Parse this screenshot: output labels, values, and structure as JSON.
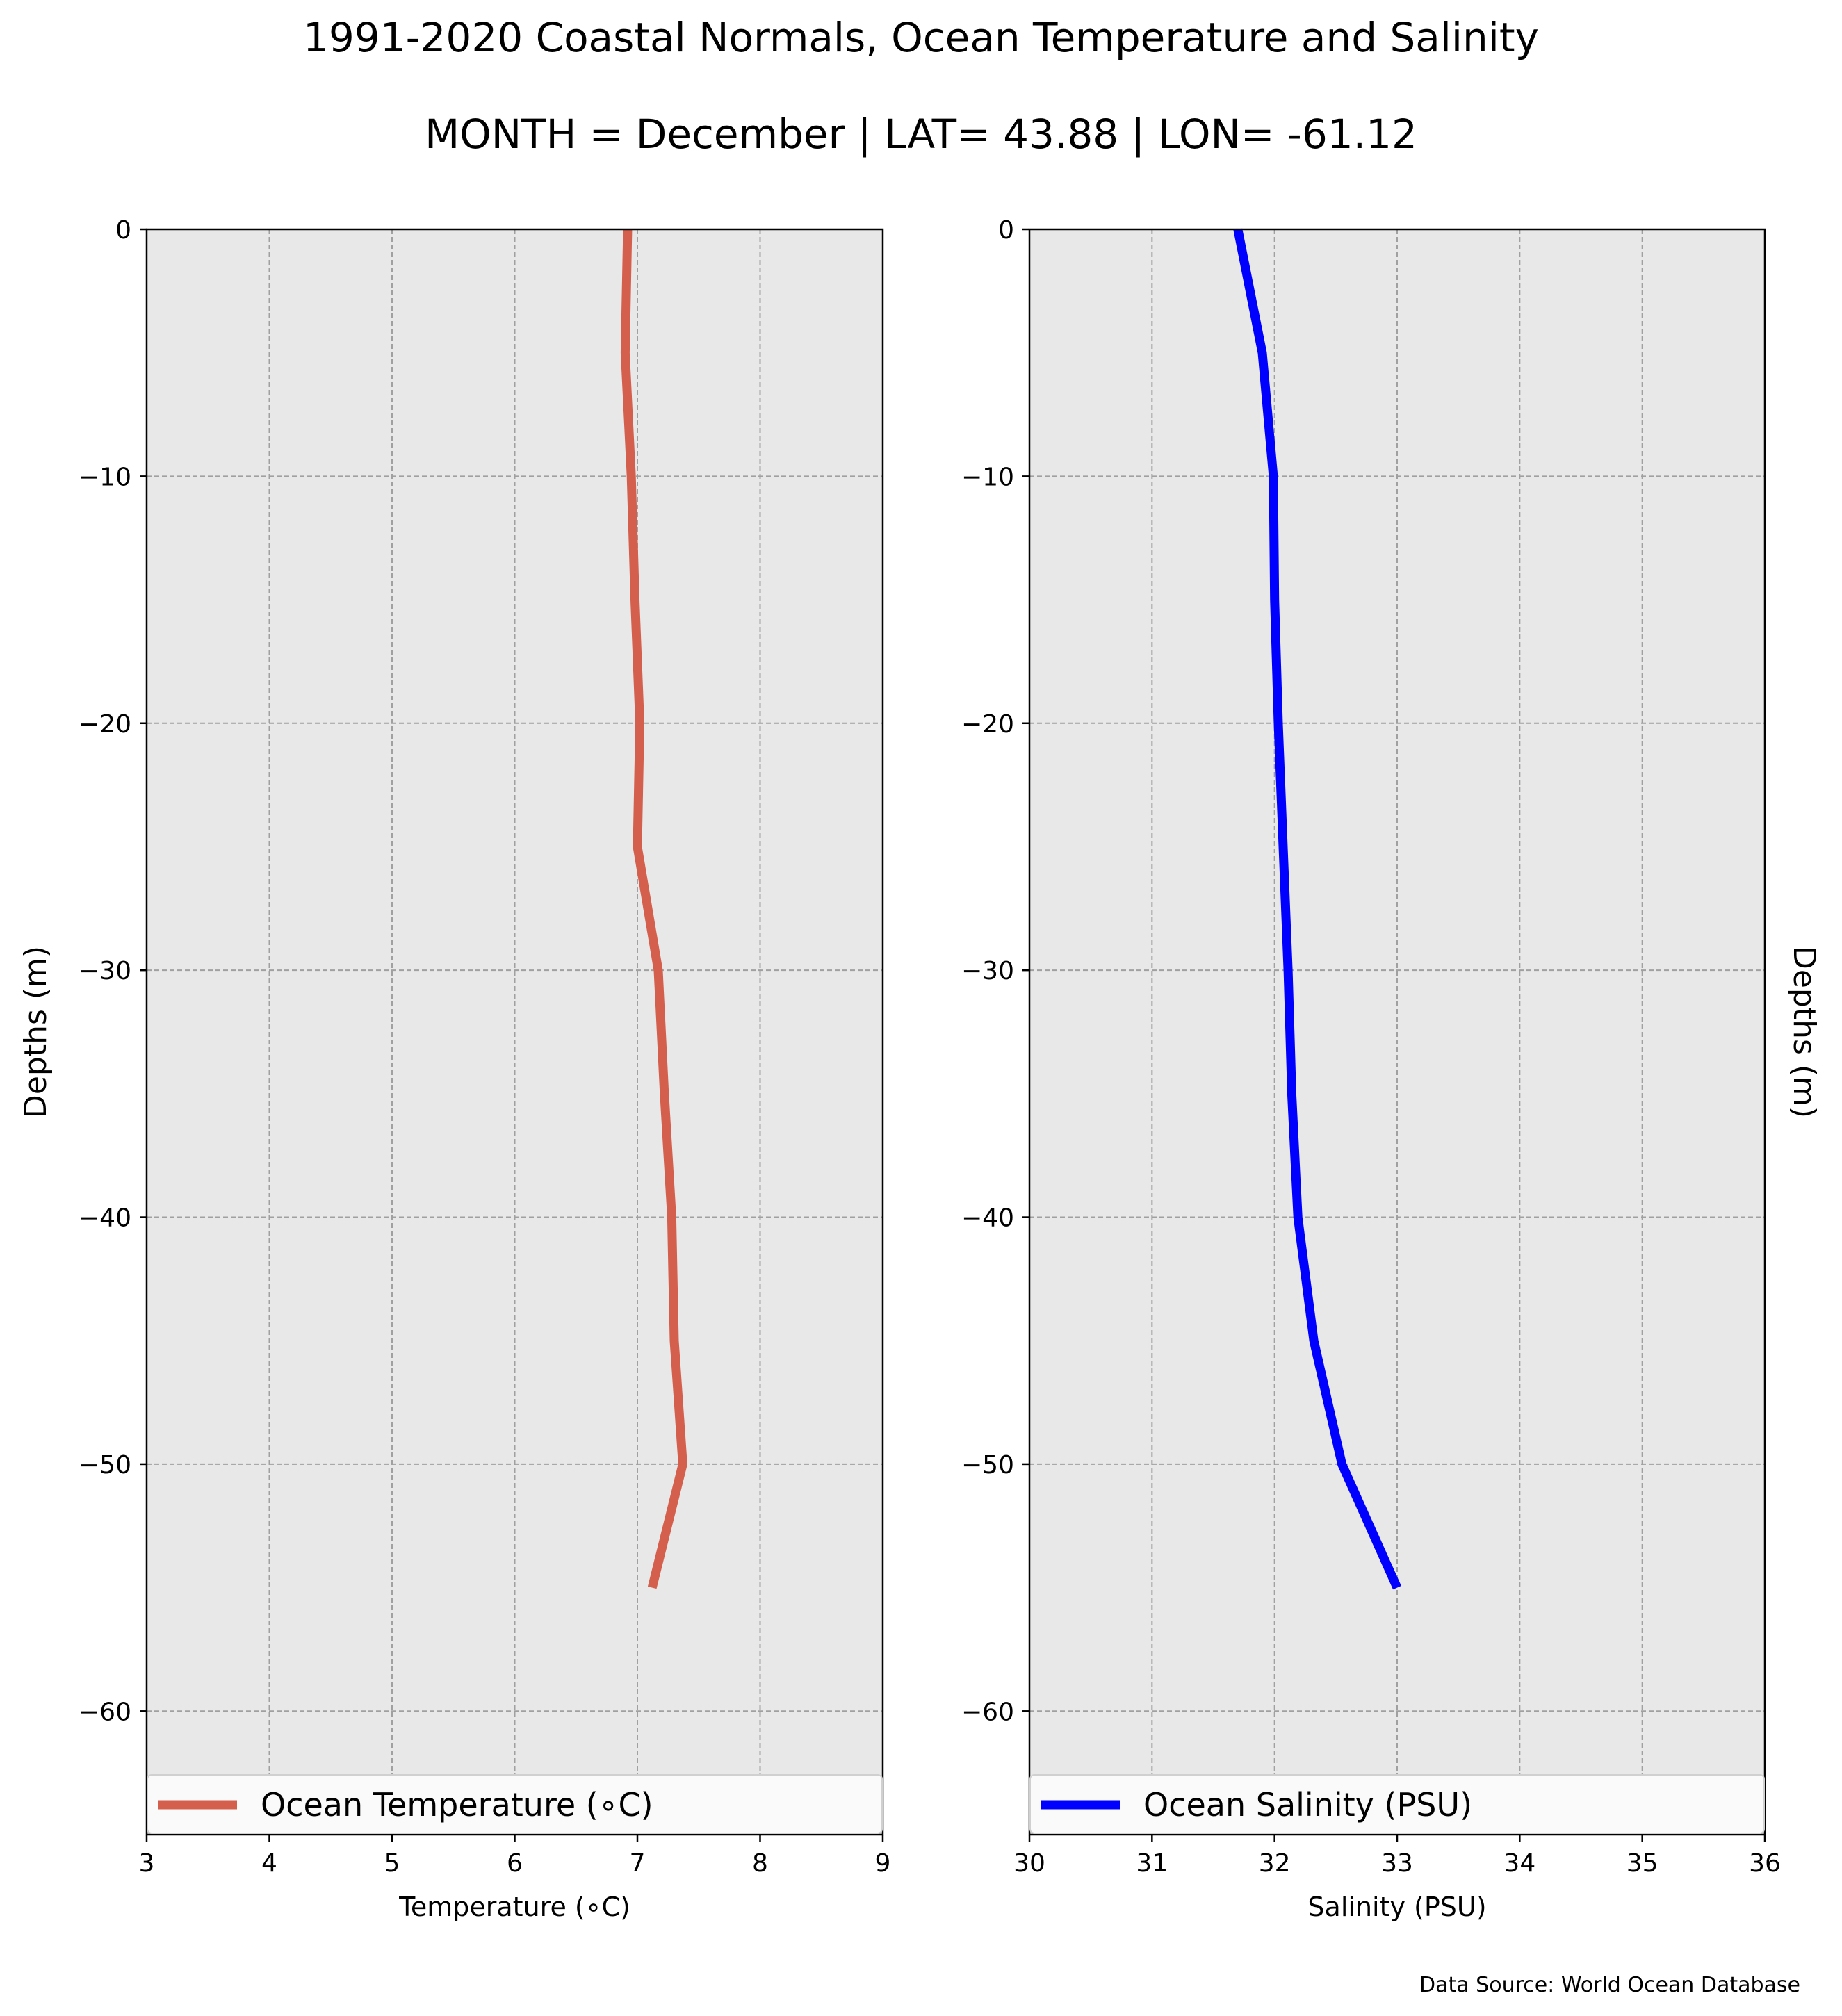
{
  "figure": {
    "title": "1991-2020 Coastal Normals, Ocean Temperature and Salinity",
    "subtitle": "MONTH = December | LAT= 43.88 | LON= -61.12",
    "source": "Data Source: World Ocean Database",
    "background": "#ffffff",
    "axes_face": "#e8e8e8"
  },
  "chart_data": [
    {
      "type": "line",
      "xlabel": "Temperature ($^\\circ$C)",
      "xlabel_display": "Temperature (∘C)",
      "ylabel": "Depths (m)",
      "ylabel_side": "left",
      "xlim": [
        3,
        9
      ],
      "ylim": [
        -65,
        0
      ],
      "xticks": [
        3,
        4,
        5,
        6,
        7,
        8,
        9
      ],
      "yticks": [
        0,
        -10,
        -20,
        -30,
        -40,
        -50,
        -60
      ],
      "ytick_labels": [
        "0",
        "−10",
        "−20",
        "−30",
        "−40",
        "−50",
        "−60"
      ],
      "grid": true,
      "legend": "bottom",
      "series": [
        {
          "name": "Ocean Temperature (∘C)",
          "color": "#d45f4d",
          "x": [
            6.92,
            6.9,
            6.95,
            6.98,
            7.02,
            7.0,
            7.17,
            7.22,
            7.28,
            7.3,
            7.37,
            7.12
          ],
          "y": [
            0,
            -5,
            -10,
            -15,
            -20,
            -25,
            -30,
            -35,
            -40,
            -45,
            -50,
            -55
          ]
        }
      ]
    },
    {
      "type": "line",
      "xlabel": "Salinity (PSU)",
      "ylabel": "Depths (m)",
      "ylabel_side": "right",
      "xlim": [
        30,
        36
      ],
      "ylim": [
        -65,
        0
      ],
      "xticks": [
        30,
        31,
        32,
        33,
        34,
        35,
        36
      ],
      "yticks": [
        0,
        -10,
        -20,
        -30,
        -40,
        -50,
        -60
      ],
      "ytick_labels": [
        "0",
        "−10",
        "−20",
        "−30",
        "−40",
        "−50",
        "−60"
      ],
      "grid": true,
      "legend": "bottom",
      "series": [
        {
          "name": "Ocean Salinity (PSU)",
          "color": "#0000ff",
          "x": [
            31.7,
            31.9,
            31.99,
            32.0,
            32.03,
            32.07,
            32.11,
            32.14,
            32.19,
            32.32,
            32.55,
            33.0
          ],
          "y": [
            0,
            -5,
            -10,
            -15,
            -20,
            -25,
            -30,
            -35,
            -40,
            -45,
            -50,
            -55
          ]
        }
      ]
    }
  ]
}
